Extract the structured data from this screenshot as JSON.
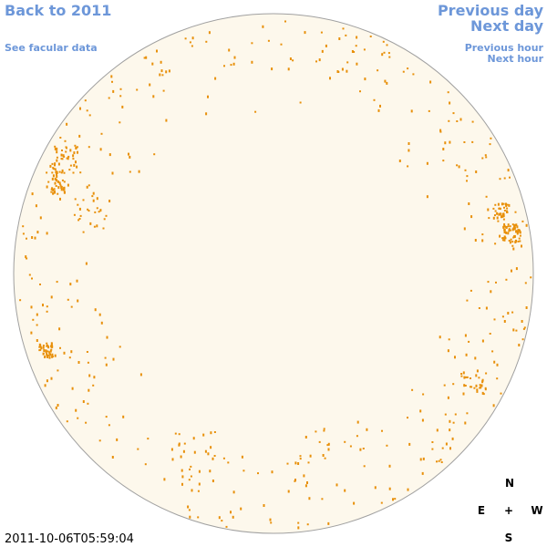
{
  "links": {
    "back": "Back to 2011",
    "facular": "See facular data",
    "previous_day": "Previous day",
    "next_day": "Next day",
    "previous_hour": "Previous hour",
    "next_hour": "Next hour"
  },
  "timestamp": "2011-10-06T05:59:04",
  "compass": {
    "north": "N",
    "east": "E",
    "center": "+",
    "west": "W",
    "south": "S"
  }
}
